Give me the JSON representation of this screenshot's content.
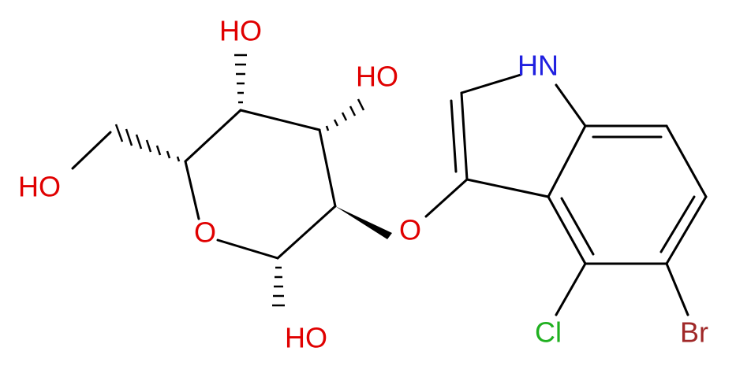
{
  "atoms": [
    {
      "label": "HO"
    },
    {
      "label": "HO"
    },
    {
      "label": "HO"
    },
    {
      "label": "O"
    },
    {
      "label": "O"
    },
    {
      "label": "HO"
    },
    {
      "label": "HN"
    },
    {
      "label": "Cl"
    },
    {
      "label": "Br"
    }
  ]
}
